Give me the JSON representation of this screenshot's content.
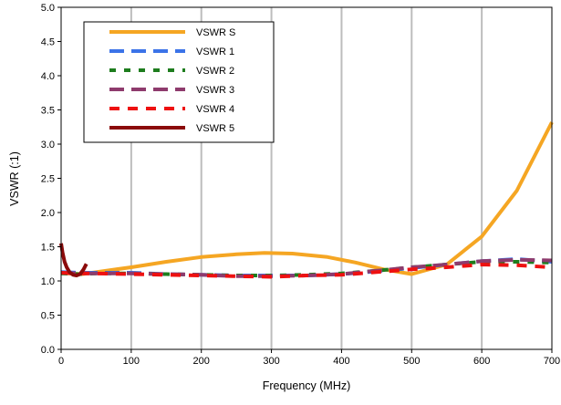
{
  "chart_data": {
    "type": "line",
    "title": "",
    "xlabel": "Frequency (MHz)",
    "ylabel": "VSWR (:1)",
    "xlim": [
      0,
      700
    ],
    "ylim": [
      0,
      5
    ],
    "x_ticks": [
      "0",
      "100",
      "200",
      "300",
      "400",
      "500",
      "600",
      "700"
    ],
    "y_ticks": [
      "0.0",
      "0.5",
      "1.0",
      "1.5",
      "2.0",
      "2.5",
      "3.0",
      "3.5",
      "4.0",
      "4.5",
      "5.0"
    ],
    "grid": "vertical",
    "legend_position": "top-left",
    "series": [
      {
        "name": "VSWR S",
        "color": "#f5a623",
        "dash": "solid",
        "points": [
          [
            0,
            1.13
          ],
          [
            10,
            1.11
          ],
          [
            30,
            1.1
          ],
          [
            50,
            1.13
          ],
          [
            100,
            1.2
          ],
          [
            150,
            1.28
          ],
          [
            200,
            1.35
          ],
          [
            250,
            1.39
          ],
          [
            290,
            1.41
          ],
          [
            330,
            1.4
          ],
          [
            380,
            1.35
          ],
          [
            420,
            1.27
          ],
          [
            460,
            1.17
          ],
          [
            500,
            1.1
          ],
          [
            550,
            1.24
          ],
          [
            600,
            1.65
          ],
          [
            650,
            2.32
          ],
          [
            700,
            3.32
          ]
        ]
      },
      {
        "name": "VSWR 1",
        "color": "#3b73e8",
        "dash": "long",
        "points": [
          [
            0,
            1.13
          ],
          [
            25,
            1.12
          ],
          [
            50,
            1.12
          ],
          [
            100,
            1.12
          ],
          [
            150,
            1.1
          ],
          [
            200,
            1.09
          ],
          [
            250,
            1.08
          ],
          [
            300,
            1.08
          ],
          [
            350,
            1.08
          ],
          [
            400,
            1.1
          ],
          [
            450,
            1.14
          ],
          [
            500,
            1.19
          ],
          [
            550,
            1.24
          ],
          [
            600,
            1.29
          ],
          [
            650,
            1.32
          ],
          [
            700,
            1.28
          ]
        ]
      },
      {
        "name": "VSWR 2",
        "color": "#1e7d1e",
        "dash": "short",
        "points": [
          [
            0,
            1.11
          ],
          [
            25,
            1.1
          ],
          [
            50,
            1.11
          ],
          [
            100,
            1.11
          ],
          [
            150,
            1.1
          ],
          [
            200,
            1.09
          ],
          [
            250,
            1.08
          ],
          [
            300,
            1.08
          ],
          [
            350,
            1.09
          ],
          [
            400,
            1.11
          ],
          [
            450,
            1.15
          ],
          [
            500,
            1.2
          ],
          [
            550,
            1.24
          ],
          [
            600,
            1.28
          ],
          [
            650,
            1.28
          ],
          [
            700,
            1.27
          ]
        ]
      },
      {
        "name": "VSWR 3",
        "color": "#8e3b6d",
        "dash": "long",
        "points": [
          [
            0,
            1.12
          ],
          [
            25,
            1.11
          ],
          [
            50,
            1.11
          ],
          [
            100,
            1.11
          ],
          [
            150,
            1.1
          ],
          [
            200,
            1.09
          ],
          [
            250,
            1.07
          ],
          [
            300,
            1.07
          ],
          [
            350,
            1.08
          ],
          [
            400,
            1.1
          ],
          [
            450,
            1.15
          ],
          [
            500,
            1.2
          ],
          [
            550,
            1.24
          ],
          [
            600,
            1.29
          ],
          [
            650,
            1.31
          ],
          [
            700,
            1.3
          ]
        ]
      },
      {
        "name": "VSWR 4",
        "color": "#ee1111",
        "dash": "medium",
        "points": [
          [
            0,
            1.12
          ],
          [
            25,
            1.11
          ],
          [
            50,
            1.11
          ],
          [
            100,
            1.1
          ],
          [
            150,
            1.09
          ],
          [
            200,
            1.08
          ],
          [
            250,
            1.07
          ],
          [
            300,
            1.06
          ],
          [
            350,
            1.08
          ],
          [
            400,
            1.09
          ],
          [
            450,
            1.13
          ],
          [
            500,
            1.17
          ],
          [
            550,
            1.2
          ],
          [
            600,
            1.24
          ],
          [
            650,
            1.23
          ],
          [
            700,
            1.2
          ]
        ]
      },
      {
        "name": "VSWR 5",
        "color": "#8b0a0a",
        "dash": "solid",
        "points": [
          [
            0,
            1.55
          ],
          [
            2,
            1.42
          ],
          [
            5,
            1.28
          ],
          [
            8,
            1.2
          ],
          [
            12,
            1.13
          ],
          [
            17,
            1.09
          ],
          [
            22,
            1.08
          ],
          [
            27,
            1.1
          ],
          [
            32,
            1.17
          ],
          [
            36,
            1.25
          ]
        ]
      }
    ]
  }
}
